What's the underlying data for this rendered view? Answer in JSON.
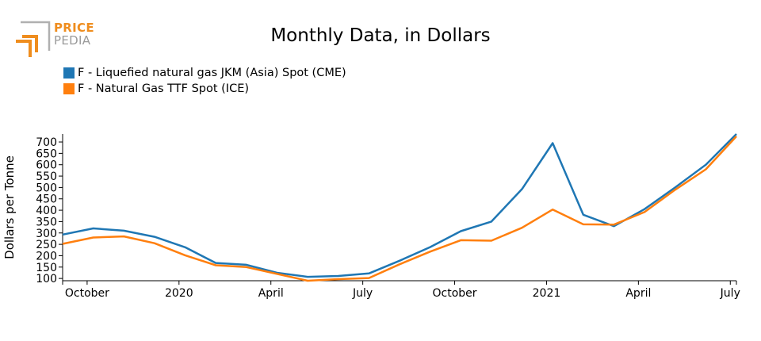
{
  "brand": {
    "line1": "PRICE",
    "line2": "PEDIA"
  },
  "chart_data": {
    "type": "line",
    "title": "Monthly Data, in Dollars",
    "ylabel": "Dollars per Tonne",
    "xlabel": "",
    "ylim": [
      90,
      735
    ],
    "yticks": [
      100,
      150,
      200,
      250,
      300,
      350,
      400,
      450,
      500,
      550,
      600,
      650,
      700
    ],
    "x_tick_labels": [
      {
        "label": "October",
        "index": 0.8
      },
      {
        "label": "2020",
        "index": 3.8
      },
      {
        "label": "April",
        "index": 6.8
      },
      {
        "label": "July",
        "index": 9.8
      },
      {
        "label": "October",
        "index": 12.8
      },
      {
        "label": "2021",
        "index": 15.8
      },
      {
        "label": "April",
        "index": 18.8
      },
      {
        "label": "July",
        "index": 21.8
      }
    ],
    "legend_position": "top-left",
    "series": [
      {
        "name": "F - Liquefied natural gas JKM (Asia) Spot (CME)",
        "color": "#1f77b4",
        "values": [
          293,
          320,
          310,
          283,
          237,
          168,
          160,
          125,
          107,
          111,
          122,
          178,
          238,
          308,
          350,
          493,
          695,
          380,
          330,
          405,
          500,
          600,
          735
        ]
      },
      {
        "name": "F - Natural Gas TTF Spot (ICE)",
        "color": "#ff7f0e",
        "values": [
          252,
          280,
          285,
          255,
          202,
          158,
          150,
          120,
          90,
          97,
          102,
          162,
          218,
          268,
          266,
          323,
          403,
          338,
          337,
          392,
          490,
          580,
          725
        ]
      }
    ]
  }
}
